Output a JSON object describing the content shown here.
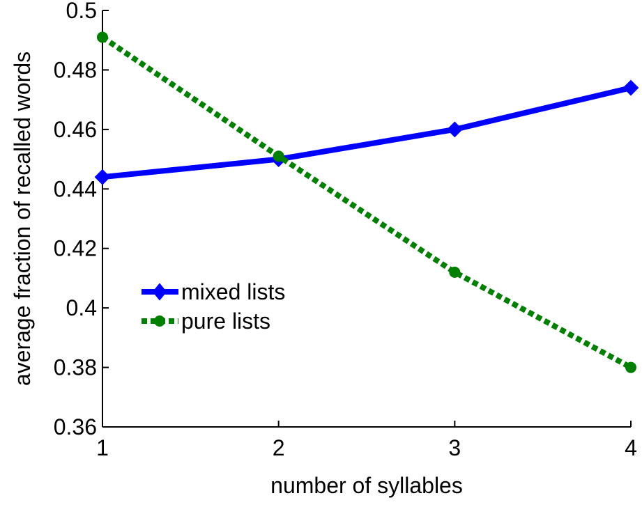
{
  "chart_data": {
    "type": "line",
    "title": "",
    "xlabel": "number of syllables",
    "ylabel": "average fraction of recalled words",
    "x": [
      1,
      2,
      3,
      4
    ],
    "xlim": [
      1,
      4
    ],
    "ylim": [
      0.36,
      0.5
    ],
    "xticks": [
      1,
      2,
      3,
      4
    ],
    "xtick_labels": [
      "1",
      "2",
      "3",
      "4"
    ],
    "yticks": [
      0.36,
      0.38,
      0.4,
      0.42,
      0.44,
      0.46,
      0.48,
      0.5
    ],
    "ytick_labels": [
      "0.36",
      "0.38",
      "0.4",
      "0.42",
      "0.44",
      "0.46",
      "0.48",
      "0.5"
    ],
    "grid": false,
    "legend_position": "center-left",
    "series": [
      {
        "name": "mixed lists",
        "values": [
          0.444,
          0.45,
          0.46,
          0.474
        ],
        "color": "#0000ff",
        "line_style": "solid",
        "marker": "diamond"
      },
      {
        "name": "pure lists",
        "values": [
          0.491,
          0.451,
          0.412,
          0.38
        ],
        "color": "#007f00",
        "line_style": "dotted",
        "marker": "circle"
      }
    ]
  }
}
